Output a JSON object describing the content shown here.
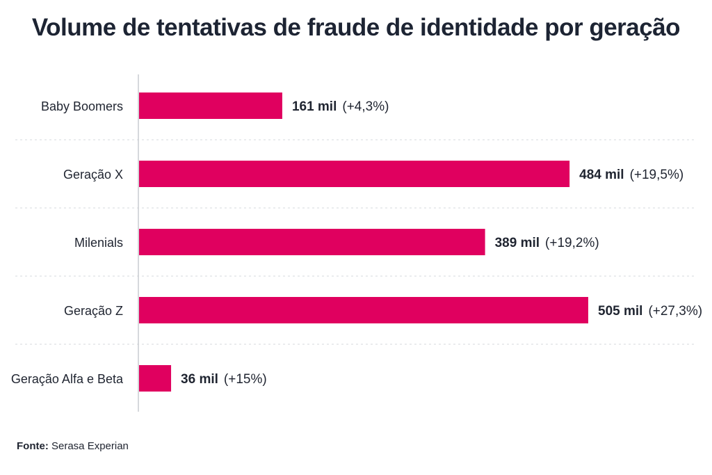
{
  "chart_data": {
    "type": "bar",
    "orientation": "horizontal",
    "title": "Volume de tentativas de fraude de identidade por geração",
    "categories": [
      "Baby Boomers",
      "Geração X",
      "Milenials",
      "Geração Z",
      "Geração Alfa e Beta"
    ],
    "values": [
      161,
      484,
      389,
      505,
      36
    ],
    "value_labels": [
      "161 mil",
      "484 mil",
      "389 mil",
      "505 mil",
      "36 mil"
    ],
    "change_labels": [
      "(+4,3%)",
      "(+19,5%)",
      "(+19,2%)",
      "(+27,3%)",
      "(+15%)"
    ],
    "unit": "mil",
    "xlim": [
      0,
      505
    ],
    "grid": "dashed horizontal separators",
    "bar_color": "#e0005f"
  },
  "source": {
    "label": "Fonte:",
    "text": "Serasa Experian"
  }
}
